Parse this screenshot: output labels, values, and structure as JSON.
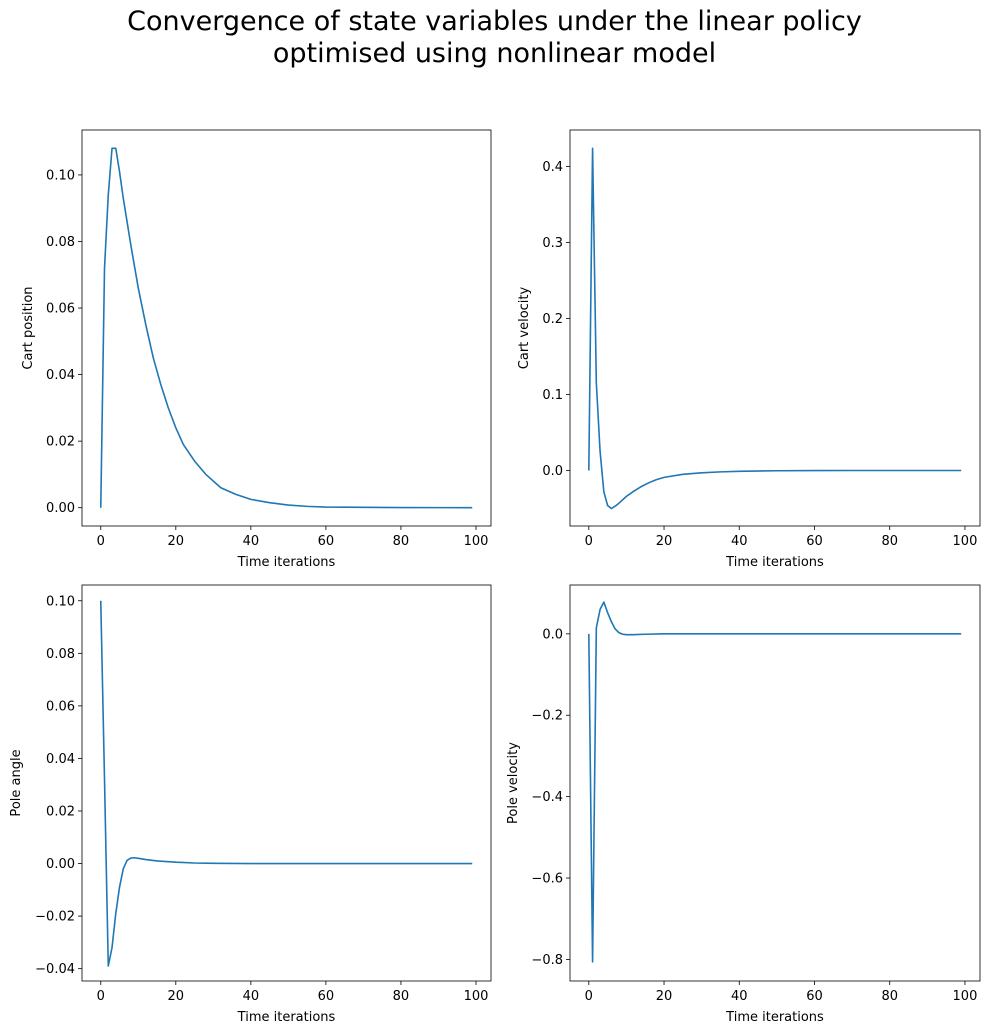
{
  "figure": {
    "title_line1": "Convergence of state variables under the linear policy",
    "title_line2": "optimised using nonlinear model"
  },
  "colors": {
    "line": "#1f77b4",
    "axes": "#000000"
  },
  "chart_data": [
    {
      "type": "line",
      "xlabel": "Time iterations",
      "ylabel": "Cart position",
      "xlim": [
        -5,
        104
      ],
      "ylim": [
        -0.0055,
        0.1135
      ],
      "xticks": [
        0,
        20,
        40,
        60,
        80,
        100
      ],
      "yticks": [
        0.0,
        0.02,
        0.04,
        0.06,
        0.08,
        0.1
      ],
      "ytick_labels": [
        "0.00",
        "0.02",
        "0.04",
        "0.06",
        "0.08",
        "0.10"
      ],
      "x": [
        0,
        1,
        2,
        3,
        4,
        5,
        6,
        8,
        10,
        12,
        14,
        16,
        18,
        20,
        22,
        25,
        28,
        32,
        36,
        40,
        45,
        50,
        55,
        60,
        70,
        80,
        90,
        99
      ],
      "y": [
        0,
        0.072,
        0.094,
        0.108,
        0.108,
        0.101,
        0.093,
        0.079,
        0.066,
        0.055,
        0.045,
        0.037,
        0.03,
        0.024,
        0.019,
        0.014,
        0.01,
        0.006,
        0.004,
        0.0025,
        0.0015,
        0.0008,
        0.0004,
        0.0002,
        0.0001,
        5e-05,
        2e-05,
        0.0
      ]
    },
    {
      "type": "line",
      "xlabel": "Time iterations",
      "ylabel": "Cart velocity",
      "xlim": [
        -5,
        104
      ],
      "ylim": [
        -0.073,
        0.448
      ],
      "xticks": [
        0,
        20,
        40,
        60,
        80,
        100
      ],
      "yticks": [
        0.0,
        0.1,
        0.2,
        0.3,
        0.4
      ],
      "ytick_labels": [
        "0.0",
        "0.1",
        "0.2",
        "0.3",
        "0.4"
      ],
      "x": [
        0,
        1,
        2,
        3,
        4,
        5,
        6,
        7,
        8,
        10,
        12,
        14,
        16,
        18,
        20,
        25,
        30,
        35,
        40,
        50,
        60,
        70,
        80,
        99
      ],
      "y": [
        0,
        0.424,
        0.115,
        0.025,
        -0.028,
        -0.046,
        -0.05,
        -0.047,
        -0.043,
        -0.034,
        -0.027,
        -0.021,
        -0.016,
        -0.012,
        -0.009,
        -0.005,
        -0.003,
        -0.0018,
        -0.001,
        -0.0003,
        -0.0001,
        0,
        0,
        0
      ]
    },
    {
      "type": "line",
      "xlabel": "Time iterations",
      "ylabel": "Pole angle",
      "xlim": [
        -5,
        104
      ],
      "ylim": [
        -0.0447,
        0.106
      ],
      "xticks": [
        0,
        20,
        40,
        60,
        80,
        100
      ],
      "yticks": [
        -0.04,
        -0.02,
        0.0,
        0.02,
        0.04,
        0.06,
        0.08,
        0.1
      ],
      "ytick_labels": [
        "−0.04",
        "−0.02",
        "0.00",
        "0.02",
        "0.04",
        "0.06",
        "0.08",
        "0.10"
      ],
      "x": [
        0,
        1,
        2,
        3,
        4,
        5,
        6,
        7,
        8,
        9,
        10,
        12,
        15,
        20,
        25,
        30,
        40,
        50,
        99
      ],
      "y": [
        0.1,
        0.032,
        -0.039,
        -0.032,
        -0.019,
        -0.009,
        -0.002,
        0.0012,
        0.0021,
        0.0022,
        0.002,
        0.0015,
        0.001,
        0.0005,
        0.0002,
        0.0001,
        0,
        0,
        0
      ]
    },
    {
      "type": "line",
      "xlabel": "Time iterations",
      "ylabel": "Pole velocity",
      "xlim": [
        -5,
        104
      ],
      "ylim": [
        -0.853,
        0.12
      ],
      "xticks": [
        0,
        20,
        40,
        60,
        80,
        100
      ],
      "yticks": [
        -0.8,
        -0.6,
        -0.4,
        -0.2,
        0.0
      ],
      "ytick_labels": [
        "−0.8",
        "−0.6",
        "−0.4",
        "−0.2",
        "0.0"
      ],
      "x": [
        0,
        1,
        2,
        3,
        4,
        5,
        6,
        7,
        8,
        9,
        10,
        12,
        15,
        20,
        30,
        99
      ],
      "y": [
        0,
        -0.806,
        0.015,
        0.06,
        0.078,
        0.052,
        0.03,
        0.012,
        0.003,
        -0.001,
        -0.002,
        -0.002,
        -0.001,
        0,
        0,
        0
      ]
    }
  ]
}
